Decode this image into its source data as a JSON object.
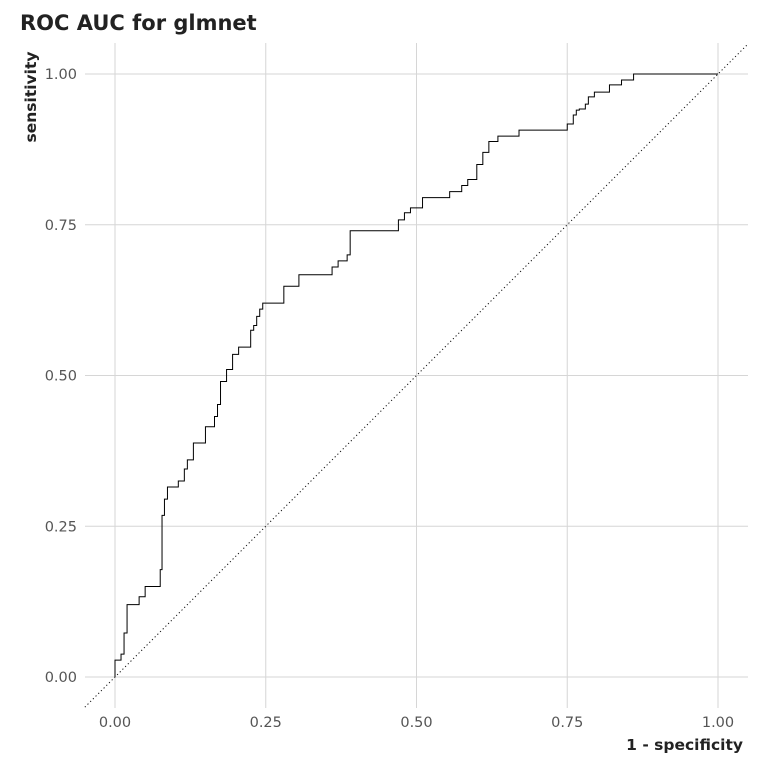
{
  "chart_data": {
    "type": "line",
    "title": "ROC AUC for glmnet",
    "xlabel": "1 - specificity",
    "ylabel": "sensitivity",
    "xlim": [
      -0.05,
      1.05
    ],
    "ylim": [
      -0.045,
      1.05
    ],
    "x_ticks": [
      0.0,
      0.25,
      0.5,
      0.75,
      1.0
    ],
    "x_tick_labels": [
      "0.00",
      "0.25",
      "0.50",
      "0.75",
      "1.00"
    ],
    "y_ticks": [
      0.0,
      0.25,
      0.5,
      0.75,
      1.0
    ],
    "y_tick_labels": [
      "0.00",
      "0.25",
      "0.50",
      "0.75",
      "1.00"
    ],
    "grid": true,
    "line_style": "step",
    "reference_line": {
      "from": [
        -0.05,
        -0.05
      ],
      "to": [
        1.05,
        1.05
      ],
      "style": "dotted"
    },
    "series": [
      {
        "x": [
          0.0,
          0.0,
          0.005,
          0.01,
          0.015,
          0.02,
          0.03,
          0.04,
          0.05,
          0.065,
          0.075,
          0.078,
          0.082,
          0.087,
          0.095,
          0.105,
          0.115,
          0.12,
          0.125,
          0.13,
          0.14,
          0.15,
          0.155,
          0.165,
          0.17,
          0.175,
          0.18,
          0.185,
          0.195,
          0.2,
          0.205,
          0.215,
          0.225,
          0.23,
          0.235,
          0.24,
          0.245,
          0.25,
          0.265,
          0.28,
          0.3,
          0.305,
          0.32,
          0.33,
          0.36,
          0.37,
          0.385,
          0.39,
          0.395,
          0.4,
          0.405,
          0.42,
          0.44,
          0.47,
          0.475,
          0.48,
          0.49,
          0.495,
          0.5,
          0.51,
          0.53,
          0.555,
          0.575,
          0.585,
          0.6,
          0.61,
          0.62,
          0.63,
          0.635,
          0.64,
          0.645,
          0.655,
          0.67,
          0.68,
          0.7,
          0.72,
          0.75,
          0.76,
          0.765,
          0.77,
          0.775,
          0.78,
          0.785,
          0.795,
          0.81,
          0.82,
          0.83,
          0.84,
          0.85,
          0.86,
          0.88,
          0.89,
          0.9,
          0.92,
          0.93,
          0.95,
          0.97,
          0.985,
          1.0
        ],
        "y": [
          0.0,
          0.028,
          0.028,
          0.038,
          0.073,
          0.12,
          0.12,
          0.133,
          0.15,
          0.15,
          0.178,
          0.268,
          0.295,
          0.315,
          0.315,
          0.325,
          0.345,
          0.36,
          0.36,
          0.388,
          0.388,
          0.415,
          0.415,
          0.432,
          0.452,
          0.49,
          0.49,
          0.51,
          0.535,
          0.535,
          0.547,
          0.547,
          0.575,
          0.583,
          0.598,
          0.61,
          0.62,
          0.62,
          0.62,
          0.648,
          0.648,
          0.667,
          0.667,
          0.667,
          0.68,
          0.69,
          0.7,
          0.74,
          0.74,
          0.74,
          0.74,
          0.74,
          0.74,
          0.758,
          0.758,
          0.77,
          0.778,
          0.778,
          0.778,
          0.795,
          0.795,
          0.805,
          0.815,
          0.825,
          0.85,
          0.87,
          0.888,
          0.888,
          0.897,
          0.897,
          0.897,
          0.897,
          0.907,
          0.907,
          0.907,
          0.907,
          0.917,
          0.932,
          0.94,
          0.942,
          0.942,
          0.95,
          0.962,
          0.97,
          0.97,
          0.982,
          0.982,
          0.99,
          0.99,
          1.0,
          1.0,
          1.0,
          1.0,
          1.0,
          1.0,
          1.0,
          1.0,
          1.0,
          1.0
        ]
      }
    ]
  }
}
